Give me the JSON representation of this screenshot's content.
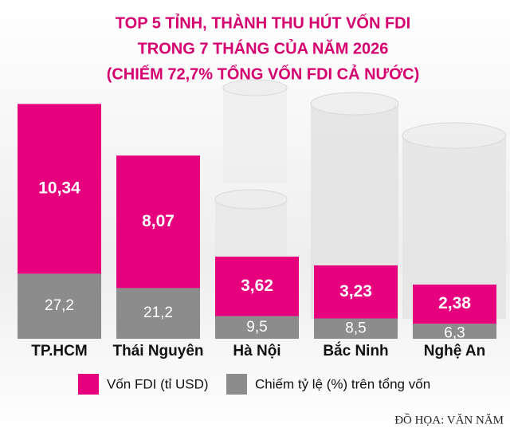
{
  "chart_data": {
    "type": "stacked-bar",
    "title": [
      "TOP 5 TỈNH, THÀNH THU HÚT VỐN FDI",
      "TRONG 7 THÁNG CỦA NĂM 2026",
      "(CHIẾM 72,7% TỔNG VỐN FDI CẢ NƯỚC)"
    ],
    "categories": [
      "TP.HCM",
      "Thái Nguyên",
      "Hà Nội",
      "Bắc Ninh",
      "Nghệ An"
    ],
    "series": [
      {
        "name": "Vốn FDI (tỉ USD)",
        "color": "#e6007e",
        "values": [
          10.34,
          8.07,
          3.62,
          3.23,
          2.38
        ],
        "value_labels": [
          "10,34",
          "8,07",
          "3,62",
          "3,23",
          "2,38"
        ]
      },
      {
        "name": "Chiếm tỷ lệ (%) trên tổng vốn",
        "color": "#8c8c8c",
        "values": [
          27.2,
          21.2,
          9.5,
          8.5,
          6.3
        ],
        "value_labels": [
          "27,2",
          "21,2",
          "9,5",
          "8,5",
          "6,3"
        ]
      }
    ],
    "credit": "ĐỒ HỌA: VĂN NĂM"
  }
}
